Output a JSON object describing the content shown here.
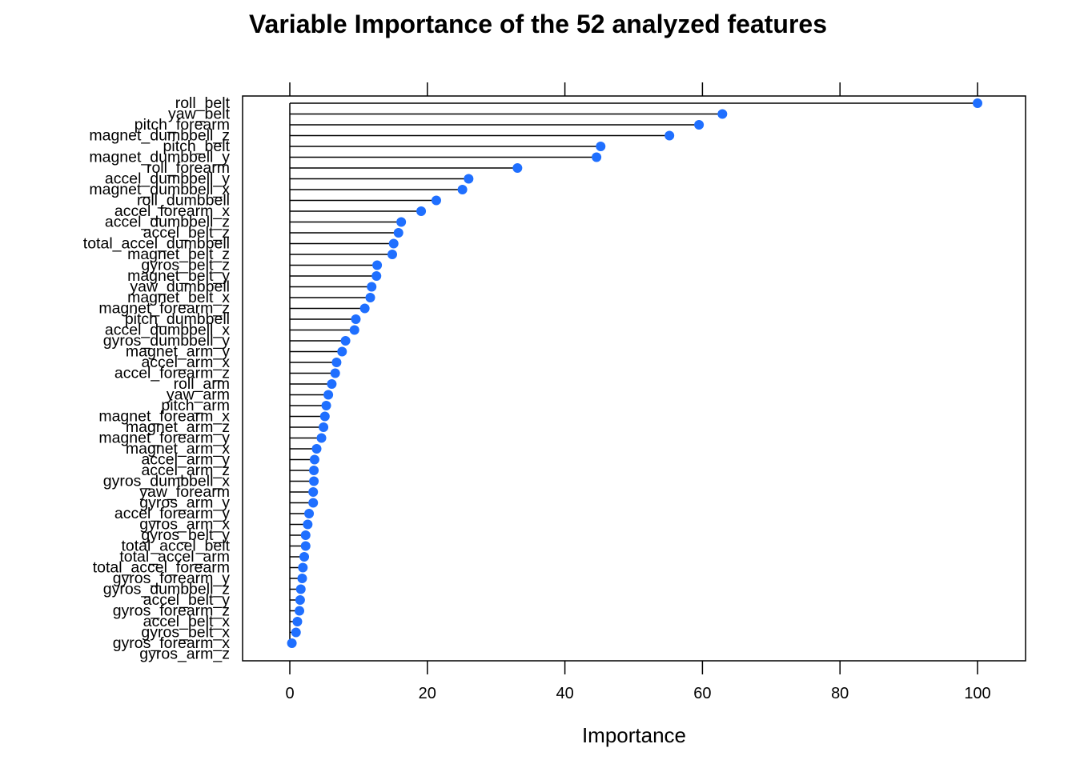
{
  "chart_data": {
    "type": "dot",
    "title": "Variable Importance of the 52 analyzed features",
    "xlabel": "Importance",
    "ylabel": "",
    "xlim": [
      -7,
      107
    ],
    "xticks": [
      0,
      20,
      40,
      60,
      80,
      100
    ],
    "grid": false,
    "marker_color": "#1f6fff",
    "line_color": "#000000",
    "categories": [
      "roll_belt",
      "yaw_belt",
      "pitch_forearm",
      "magnet_dumbbell_z",
      "pitch_belt",
      "magnet_dumbbell_y",
      "roll_forearm",
      "accel_dumbbell_y",
      "magnet_dumbbell_x",
      "roll_dumbbell",
      "accel_forearm_x",
      "accel_dumbbell_z",
      "accel_belt_z",
      "total_accel_dumbbell",
      "magnet_belt_z",
      "gyros_belt_z",
      "magnet_belt_y",
      "yaw_dumbbell",
      "magnet_belt_x",
      "magnet_forearm_z",
      "pitch_dumbbell",
      "accel_dumbbell_x",
      "gyros_dumbbell_y",
      "magnet_arm_y",
      "accel_arm_x",
      "accel_forearm_z",
      "roll_arm",
      "yaw_arm",
      "pitch_arm",
      "magnet_forearm_x",
      "magnet_arm_z",
      "magnet_forearm_y",
      "magnet_arm_x",
      "accel_arm_y",
      "accel_arm_z",
      "gyros_dumbbell_x",
      "yaw_forearm",
      "gyros_arm_y",
      "accel_forearm_y",
      "gyros_arm_x",
      "gyros_belt_y",
      "total_accel_belt",
      "total_accel_arm",
      "total_accel_forearm",
      "gyros_forearm_y",
      "gyros_dumbbell_z",
      "accel_belt_y",
      "gyros_forearm_z",
      "accel_belt_x",
      "gyros_belt_x",
      "gyros_forearm_x",
      "gyros_arm_z"
    ],
    "values": [
      100,
      62.9,
      59.5,
      55.2,
      45.2,
      44.6,
      33.1,
      26.0,
      25.1,
      21.3,
      19.1,
      16.2,
      15.8,
      15.1,
      14.9,
      12.7,
      12.6,
      11.9,
      11.7,
      10.9,
      9.6,
      9.4,
      8.1,
      7.6,
      6.8,
      6.6,
      6.1,
      5.6,
      5.3,
      5.1,
      4.9,
      4.6,
      3.9,
      3.6,
      3.5,
      3.5,
      3.4,
      3.4,
      2.8,
      2.6,
      2.3,
      2.3,
      2.1,
      1.9,
      1.8,
      1.6,
      1.5,
      1.4,
      1.1,
      0.9,
      0.3,
      null
    ]
  }
}
